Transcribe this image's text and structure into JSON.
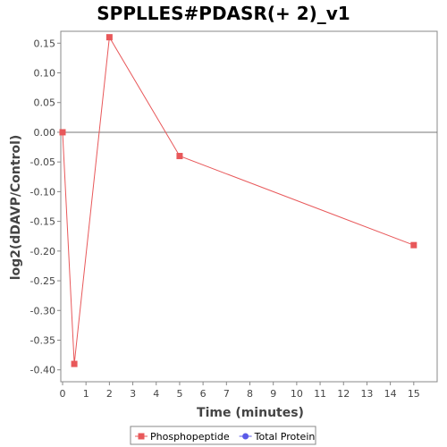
{
  "chart_data": {
    "type": "line",
    "title": "SPPLLES#PDASR(+ 2)_v1",
    "xlabel": "Time (minutes)",
    "ylabel": "log2(dDAVP/Control)",
    "xlim": [
      0,
      16
    ],
    "ylim": [
      -0.42,
      0.17
    ],
    "x_ticks": [
      0,
      1,
      2,
      3,
      4,
      5,
      6,
      7,
      8,
      9,
      10,
      11,
      12,
      13,
      14,
      15
    ],
    "y_ticks": [
      -0.4,
      -0.35,
      -0.3,
      -0.25,
      -0.2,
      -0.15,
      -0.1,
      -0.05,
      0.0,
      0.05,
      0.1,
      0.15
    ],
    "y_tick_labels": [
      "-0.40",
      "-0.35",
      "-0.30",
      "-0.25",
      "-0.20",
      "-0.15",
      "-0.10",
      "-0.05",
      "0.00",
      "0.05",
      "0.10",
      "0.15"
    ],
    "zero_line": true,
    "grid": false,
    "legend_position": "bottom-center",
    "series": [
      {
        "name": "Phosphopeptide",
        "color": "#e8585a",
        "marker": "square",
        "x": [
          0,
          0.5,
          2,
          5,
          15
        ],
        "y": [
          0.0,
          -0.39,
          0.16,
          -0.04,
          -0.19
        ]
      },
      {
        "name": "Total Protein",
        "color": "#5a5ae8",
        "marker": "circle",
        "x": [],
        "y": []
      }
    ]
  }
}
